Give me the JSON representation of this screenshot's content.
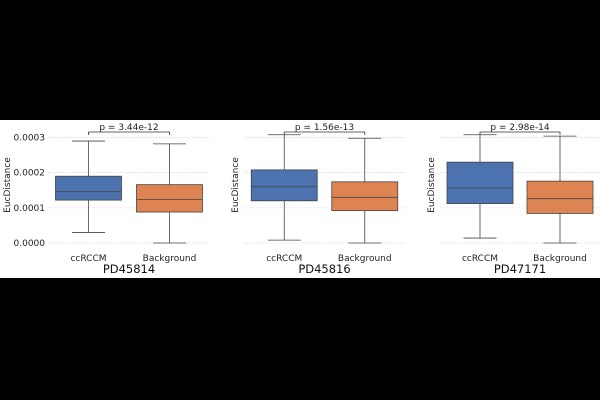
{
  "colors": {
    "ccRCCM": "#4c72b0",
    "Background": "#dd8452",
    "background": "#ffffff",
    "grid": "#d9d9d9",
    "frame": "#000000"
  },
  "chart_data": [
    {
      "type": "box",
      "title": "PD45814",
      "ylabel": "EucDistance",
      "ylim": [
        -2e-05,
        0.00035
      ],
      "yticks": [
        0.0,
        0.0001,
        0.0002,
        0.0003
      ],
      "ytick_labels": [
        "0.0000",
        "0.0001",
        "0.0002",
        "0.0003"
      ],
      "grid": true,
      "categories": [
        "ccRCCM",
        "Background"
      ],
      "annotation": "p = 3.44e-12",
      "boxes": [
        {
          "name": "ccRCCM",
          "whisker_low": 3e-05,
          "q1": 0.000122,
          "median": 0.000146,
          "q3": 0.00019,
          "whisker_high": 0.00029
        },
        {
          "name": "Background",
          "whisker_low": 0.0,
          "q1": 8.8e-05,
          "median": 0.000124,
          "q3": 0.000166,
          "whisker_high": 0.000282
        }
      ]
    },
    {
      "type": "box",
      "title": "PD45816",
      "ylabel": "EucDistance",
      "ylim": [
        -2e-05,
        0.00035
      ],
      "grid": true,
      "categories": [
        "ccRCCM",
        "Background"
      ],
      "annotation": "p = 1.56e-13",
      "boxes": [
        {
          "name": "ccRCCM",
          "whisker_low": 8e-06,
          "q1": 0.00012,
          "median": 0.00016,
          "q3": 0.000208,
          "whisker_high": 0.000308
        },
        {
          "name": "Background",
          "whisker_low": 0.0,
          "q1": 9.2e-05,
          "median": 0.00013,
          "q3": 0.000174,
          "whisker_high": 0.000298
        }
      ]
    },
    {
      "type": "box",
      "title": "PD47171",
      "ylabel": "EucDistance",
      "ylim": [
        -2e-05,
        0.00035
      ],
      "grid": true,
      "categories": [
        "ccRCCM",
        "Background"
      ],
      "annotation": "p = 2.98e-14",
      "boxes": [
        {
          "name": "ccRCCM",
          "whisker_low": 1.4e-05,
          "q1": 0.000112,
          "median": 0.000156,
          "q3": 0.00023,
          "whisker_high": 0.000308
        },
        {
          "name": "Background",
          "whisker_low": 0.0,
          "q1": 8.4e-05,
          "median": 0.000126,
          "q3": 0.000176,
          "whisker_high": 0.000304
        }
      ]
    }
  ]
}
